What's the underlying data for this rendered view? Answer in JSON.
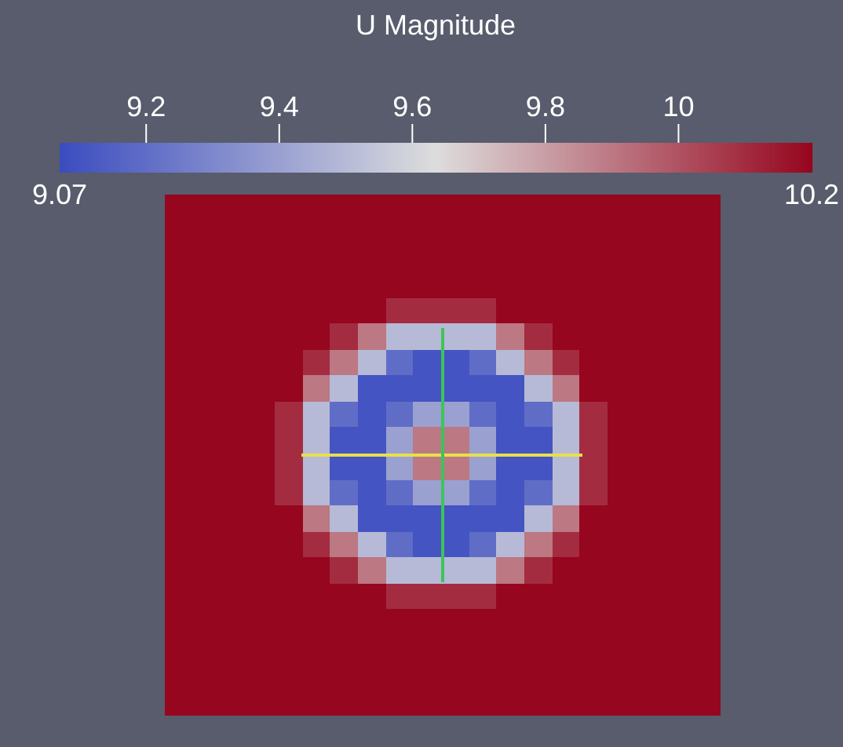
{
  "chart_data": {
    "type": "heatmap",
    "clabel": "U Magnitude",
    "categories": [
      null,
      null,
      null,
      null,
      null,
      null,
      null,
      null,
      null,
      null,
      null,
      null,
      null,
      null,
      null,
      null,
      null,
      null,
      null,
      null
    ],
    "y_categories": [
      null,
      null,
      null,
      null,
      null,
      null,
      null,
      null,
      null,
      null,
      null,
      null,
      null,
      null,
      null,
      null,
      null,
      null,
      null,
      null
    ],
    "clim": [
      9.07,
      10.2
    ],
    "cticks": [
      9.2,
      9.4,
      9.6,
      9.8,
      10
    ],
    "annotations": [
      "9.07",
      "10.2"
    ],
    "cells": [
      [
        10.2,
        10.2,
        10.2,
        10.2,
        10.2,
        10.2,
        10.2,
        10.2,
        10.2,
        10.2,
        10.2,
        10.2,
        10.2,
        10.2,
        10.2,
        10.2,
        10.2,
        10.2,
        10.2,
        10.2
      ],
      [
        10.2,
        10.2,
        10.2,
        10.2,
        10.2,
        10.2,
        10.2,
        10.2,
        10.2,
        10.2,
        10.2,
        10.2,
        10.2,
        10.2,
        10.2,
        10.2,
        10.2,
        10.2,
        10.2,
        10.2
      ],
      [
        10.2,
        10.2,
        10.2,
        10.2,
        10.2,
        10.2,
        10.2,
        10.2,
        10.2,
        10.2,
        10.2,
        10.2,
        10.2,
        10.2,
        10.2,
        10.2,
        10.2,
        10.2,
        10.2,
        10.2
      ],
      [
        10.2,
        10.2,
        10.2,
        10.2,
        10.2,
        10.2,
        10.2,
        10.2,
        10.2,
        10.2,
        10.2,
        10.2,
        10.2,
        10.2,
        10.2,
        10.2,
        10.2,
        10.2,
        10.2,
        10.2
      ],
      [
        10.2,
        10.2,
        10.2,
        10.2,
        10.2,
        10.2,
        10.2,
        10.2,
        10.1,
        10.1,
        10.1,
        10.1,
        10.2,
        10.2,
        10.2,
        10.2,
        10.2,
        10.2,
        10.2,
        10.2
      ],
      [
        10.2,
        10.2,
        10.2,
        10.2,
        10.2,
        10.2,
        10.1,
        9.9,
        9.5,
        9.5,
        9.5,
        9.5,
        9.9,
        10.1,
        10.2,
        10.2,
        10.2,
        10.2,
        10.2,
        10.2
      ],
      [
        10.2,
        10.2,
        10.2,
        10.2,
        10.2,
        10.1,
        9.9,
        9.5,
        9.2,
        9.1,
        9.1,
        9.2,
        9.5,
        9.9,
        10.1,
        10.2,
        10.2,
        10.2,
        10.2,
        10.2
      ],
      [
        10.2,
        10.2,
        10.2,
        10.2,
        10.2,
        9.9,
        9.5,
        9.1,
        9.1,
        9.1,
        9.1,
        9.1,
        9.1,
        9.5,
        9.9,
        10.2,
        10.2,
        10.2,
        10.2,
        10.2
      ],
      [
        10.2,
        10.2,
        10.2,
        10.2,
        10.1,
        9.5,
        9.2,
        9.1,
        9.2,
        9.4,
        9.4,
        9.2,
        9.1,
        9.2,
        9.5,
        10.1,
        10.2,
        10.2,
        10.2,
        10.2
      ],
      [
        10.2,
        10.2,
        10.2,
        10.2,
        10.1,
        9.5,
        9.1,
        9.1,
        9.4,
        9.9,
        9.9,
        9.4,
        9.1,
        9.1,
        9.5,
        10.1,
        10.2,
        10.2,
        10.2,
        10.2
      ],
      [
        10.2,
        10.2,
        10.2,
        10.2,
        10.1,
        9.5,
        9.1,
        9.1,
        9.4,
        9.9,
        9.9,
        9.4,
        9.1,
        9.1,
        9.5,
        10.1,
        10.2,
        10.2,
        10.2,
        10.2
      ],
      [
        10.2,
        10.2,
        10.2,
        10.2,
        10.1,
        9.5,
        9.2,
        9.1,
        9.2,
        9.4,
        9.4,
        9.2,
        9.1,
        9.2,
        9.5,
        10.1,
        10.2,
        10.2,
        10.2,
        10.2
      ],
      [
        10.2,
        10.2,
        10.2,
        10.2,
        10.2,
        9.9,
        9.5,
        9.1,
        9.1,
        9.1,
        9.1,
        9.1,
        9.1,
        9.5,
        9.9,
        10.2,
        10.2,
        10.2,
        10.2,
        10.2
      ],
      [
        10.2,
        10.2,
        10.2,
        10.2,
        10.2,
        10.1,
        9.9,
        9.5,
        9.2,
        9.1,
        9.1,
        9.2,
        9.5,
        9.9,
        10.1,
        10.2,
        10.2,
        10.2,
        10.2,
        10.2
      ],
      [
        10.2,
        10.2,
        10.2,
        10.2,
        10.2,
        10.2,
        10.1,
        9.9,
        9.5,
        9.5,
        9.5,
        9.5,
        9.9,
        10.1,
        10.2,
        10.2,
        10.2,
        10.2,
        10.2,
        10.2
      ],
      [
        10.2,
        10.2,
        10.2,
        10.2,
        10.2,
        10.2,
        10.2,
        10.2,
        10.1,
        10.1,
        10.1,
        10.1,
        10.2,
        10.2,
        10.2,
        10.2,
        10.2,
        10.2,
        10.2,
        10.2
      ],
      [
        10.2,
        10.2,
        10.2,
        10.2,
        10.2,
        10.2,
        10.2,
        10.2,
        10.2,
        10.2,
        10.2,
        10.2,
        10.2,
        10.2,
        10.2,
        10.2,
        10.2,
        10.2,
        10.2,
        10.2
      ],
      [
        10.2,
        10.2,
        10.2,
        10.2,
        10.2,
        10.2,
        10.2,
        10.2,
        10.2,
        10.2,
        10.2,
        10.2,
        10.2,
        10.2,
        10.2,
        10.2,
        10.2,
        10.2,
        10.2,
        10.2
      ],
      [
        10.2,
        10.2,
        10.2,
        10.2,
        10.2,
        10.2,
        10.2,
        10.2,
        10.2,
        10.2,
        10.2,
        10.2,
        10.2,
        10.2,
        10.2,
        10.2,
        10.2,
        10.2,
        10.2,
        10.2
      ],
      [
        10.2,
        10.2,
        10.2,
        10.2,
        10.2,
        10.2,
        10.2,
        10.2,
        10.2,
        10.2,
        10.2,
        10.2,
        10.2,
        10.2,
        10.2,
        10.2,
        10.2,
        10.2,
        10.2,
        10.2
      ]
    ]
  }
}
